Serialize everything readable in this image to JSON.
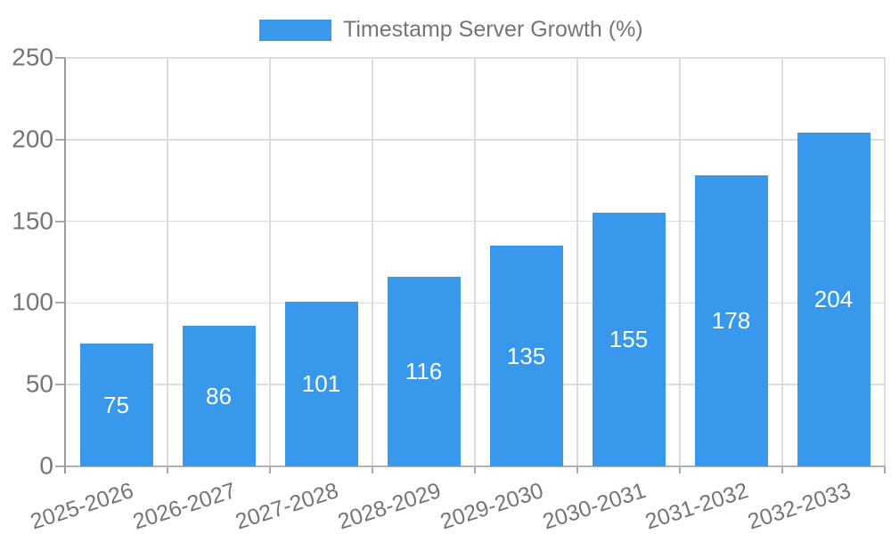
{
  "legend": {
    "label": "Timestamp Server Growth (%)"
  },
  "colors": {
    "bar": "#3899EC",
    "bar_value_label": "#FFFFFF",
    "tick_text": "#757575",
    "grid_line": "#DCDCDC",
    "y_axis_line": "#9B9B9B",
    "x_axis_line": "#B2B2B2",
    "tick_mark": "#AAAAAA",
    "background": "#FFFFFF"
  },
  "chart_data": {
    "type": "bar",
    "title": "Timestamp Server Growth (%)",
    "categories": [
      "2025-2026",
      "2026-2027",
      "2027-2028",
      "2028-2029",
      "2029-2030",
      "2030-2031",
      "2031-2032",
      "2032-2033"
    ],
    "values": [
      75,
      86,
      101,
      116,
      135,
      155,
      178,
      204
    ],
    "xlabel": "",
    "ylabel": "",
    "ylim": [
      0,
      250
    ],
    "yticks": [
      0,
      50,
      100,
      150,
      200,
      250
    ],
    "grid": true,
    "legend_position": "top",
    "value_label_position": "inside-center",
    "x_label_rotation_deg": -18
  }
}
